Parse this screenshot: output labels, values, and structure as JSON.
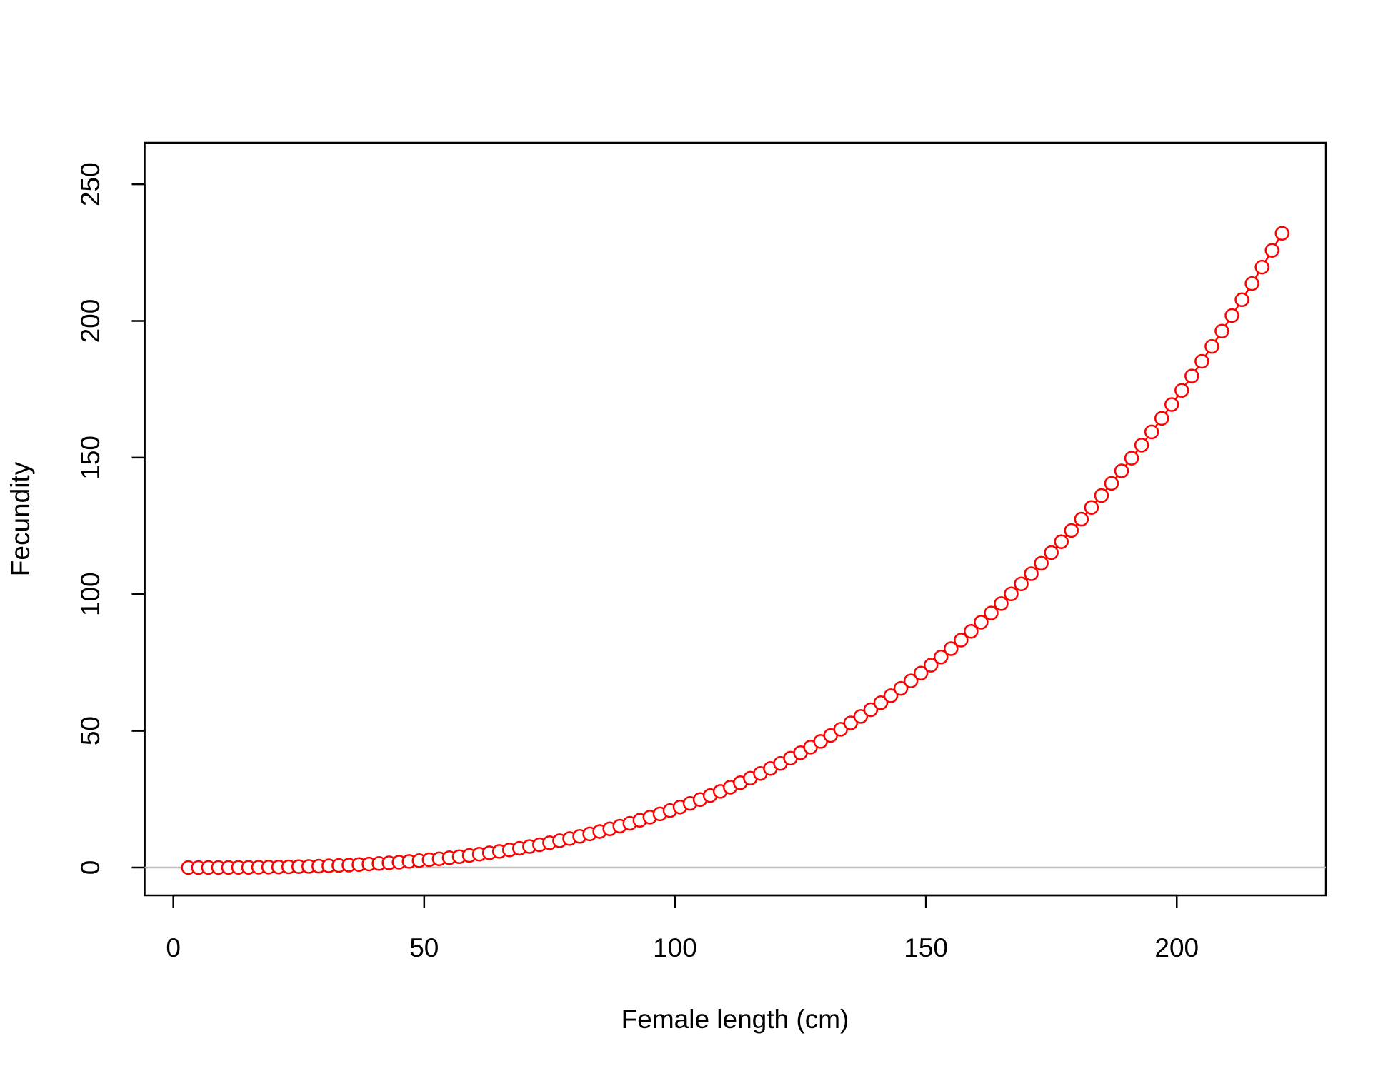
{
  "chart_data": {
    "type": "line",
    "marker": "open-circle",
    "x_label": "Female length (cm)",
    "y_label": "Fecundity",
    "x": [
      3,
      5,
      7,
      9,
      11,
      13,
      15,
      17,
      19,
      21,
      23,
      25,
      27,
      29,
      31,
      33,
      35,
      37,
      39,
      41,
      43,
      45,
      47,
      49,
      51,
      53,
      55,
      57,
      59,
      61,
      63,
      65,
      67,
      69,
      71,
      73,
      75,
      77,
      79,
      81,
      83,
      85,
      87,
      89,
      91,
      93,
      95,
      97,
      99,
      101,
      103,
      105,
      107,
      109,
      111,
      113,
      115,
      117,
      119,
      121,
      123,
      125,
      127,
      129,
      131,
      133,
      135,
      137,
      139,
      141,
      143,
      145,
      147,
      149,
      151,
      153,
      155,
      157,
      159,
      161,
      163,
      165,
      167,
      169,
      171,
      173,
      175,
      177,
      179,
      181,
      183,
      185,
      187,
      189,
      191,
      193,
      195,
      197,
      199,
      201,
      203,
      205,
      207,
      209,
      211,
      213,
      215,
      217,
      219,
      221
    ],
    "series": [
      {
        "name": "Fecundity",
        "color": "#ff0000",
        "values": [
          0.0,
          0.0,
          0.01,
          0.02,
          0.03,
          0.05,
          0.07,
          0.11,
          0.15,
          0.2,
          0.26,
          0.34,
          0.42,
          0.52,
          0.64,
          0.77,
          0.92,
          1.09,
          1.28,
          1.48,
          1.71,
          1.96,
          2.23,
          2.53,
          2.85,
          3.2,
          3.58,
          3.98,
          4.42,
          4.88,
          5.38,
          5.9,
          6.47,
          7.06,
          7.7,
          8.36,
          9.07,
          9.82,
          10.6,
          11.43,
          12.29,
          13.2,
          14.16,
          15.16,
          16.2,
          17.29,
          18.43,
          19.62,
          20.86,
          22.15,
          23.49,
          24.89,
          26.34,
          27.84,
          29.4,
          31.02,
          32.7,
          34.43,
          36.23,
          38.09,
          40.01,
          41.99,
          44.04,
          46.15,
          48.33,
          50.58,
          52.9,
          55.28,
          57.74,
          60.27,
          62.87,
          65.55,
          68.3,
          71.12,
          74.02,
          77.0,
          80.06,
          83.2,
          86.42,
          89.73,
          93.11,
          96.58,
          100.14,
          103.78,
          107.5,
          111.32,
          115.23,
          119.22,
          123.31,
          127.49,
          131.76,
          136.13,
          140.59,
          145.15,
          149.81,
          154.57,
          159.42,
          164.38,
          169.43,
          174.59,
          179.86,
          185.23,
          190.7,
          196.28,
          201.97,
          207.77,
          213.68,
          219.69,
          225.82,
          232.07
        ]
      }
    ],
    "hline": {
      "value": 0,
      "color": "#bebebe"
    },
    "xlim": [
      -5.72,
      229.72
    ],
    "xticks": [
      0,
      50,
      100,
      150,
      200
    ],
    "ylim": [
      -10.2,
      265.2
    ],
    "yticks": [
      0,
      50,
      100,
      150,
      200,
      250
    ]
  }
}
